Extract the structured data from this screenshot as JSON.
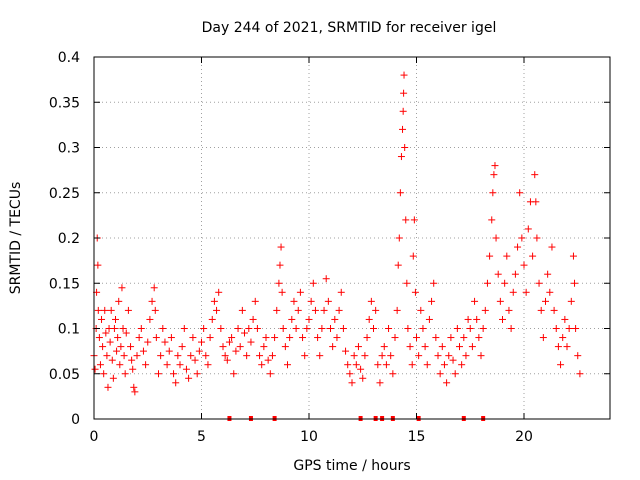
{
  "chart_data": {
    "type": "scatter",
    "title": "Day 244 of 2021, SRMTID for receiver igel",
    "xlabel": "GPS time / hours",
    "ylabel": "SRMTID / TECUs",
    "xlim": [
      0,
      24
    ],
    "ylim": [
      0,
      0.4
    ],
    "xticks": [
      0,
      5,
      10,
      15,
      20
    ],
    "yticks": [
      0,
      0.05,
      0.1,
      0.15,
      0.2,
      0.25,
      0.3,
      0.35,
      0.4
    ],
    "xtick_labels": [
      "0",
      "5",
      "10",
      "15",
      "20"
    ],
    "ytick_labels": [
      "0",
      "0.05",
      "0.1",
      "0.15",
      "0.2",
      "0.25",
      "0.3",
      "0.35",
      "0.4"
    ],
    "grid": true,
    "marker": "+",
    "color": "#ff0000",
    "series": [
      {
        "name": "SRMTID",
        "points": [
          [
            0.0,
            0.07
          ],
          [
            0.05,
            0.055
          ],
          [
            0.1,
            0.1
          ],
          [
            0.12,
            0.14
          ],
          [
            0.15,
            0.2
          ],
          [
            0.18,
            0.17
          ],
          [
            0.2,
            0.12
          ],
          [
            0.25,
            0.09
          ],
          [
            0.3,
            0.06
          ],
          [
            0.35,
            0.11
          ],
          [
            0.4,
            0.08
          ],
          [
            0.45,
            0.05
          ],
          [
            0.5,
            0.12
          ],
          [
            0.55,
            0.095
          ],
          [
            0.6,
            0.07
          ],
          [
            0.65,
            0.035
          ],
          [
            0.7,
            0.1
          ],
          [
            0.75,
            0.085
          ],
          [
            0.8,
            0.12
          ],
          [
            0.85,
            0.065
          ],
          [
            0.9,
            0.045
          ],
          [
            0.95,
            0.1
          ],
          [
            1.0,
            0.11
          ],
          [
            1.05,
            0.075
          ],
          [
            1.1,
            0.09
          ],
          [
            1.15,
            0.13
          ],
          [
            1.2,
            0.06
          ],
          [
            1.25,
            0.08
          ],
          [
            1.3,
            0.145
          ],
          [
            1.35,
            0.1
          ],
          [
            1.4,
            0.07
          ],
          [
            1.45,
            0.05
          ],
          [
            1.5,
            0.095
          ],
          [
            1.6,
            0.12
          ],
          [
            1.7,
            0.08
          ],
          [
            1.75,
            0.065
          ],
          [
            1.8,
            0.055
          ],
          [
            1.85,
            0.035
          ],
          [
            1.9,
            0.03
          ],
          [
            2.0,
            0.07
          ],
          [
            2.1,
            0.09
          ],
          [
            2.2,
            0.1
          ],
          [
            2.3,
            0.075
          ],
          [
            2.4,
            0.06
          ],
          [
            2.5,
            0.085
          ],
          [
            2.6,
            0.11
          ],
          [
            2.7,
            0.13
          ],
          [
            2.8,
            0.145
          ],
          [
            2.85,
            0.12
          ],
          [
            2.9,
            0.09
          ],
          [
            3.0,
            0.05
          ],
          [
            3.1,
            0.07
          ],
          [
            3.2,
            0.1
          ],
          [
            3.3,
            0.085
          ],
          [
            3.4,
            0.06
          ],
          [
            3.5,
            0.075
          ],
          [
            3.6,
            0.09
          ],
          [
            3.7,
            0.05
          ],
          [
            3.8,
            0.04
          ],
          [
            3.9,
            0.07
          ],
          [
            4.0,
            0.06
          ],
          [
            4.1,
            0.08
          ],
          [
            4.2,
            0.1
          ],
          [
            4.3,
            0.055
          ],
          [
            4.4,
            0.045
          ],
          [
            4.5,
            0.07
          ],
          [
            4.6,
            0.09
          ],
          [
            4.7,
            0.065
          ],
          [
            4.8,
            0.05
          ],
          [
            4.9,
            0.075
          ],
          [
            5.0,
            0.085
          ],
          [
            5.1,
            0.1
          ],
          [
            5.2,
            0.07
          ],
          [
            5.3,
            0.06
          ],
          [
            5.4,
            0.09
          ],
          [
            5.5,
            0.11
          ],
          [
            5.6,
            0.13
          ],
          [
            5.7,
            0.12
          ],
          [
            5.8,
            0.14
          ],
          [
            5.9,
            0.1
          ],
          [
            6.0,
            0.08
          ],
          [
            6.1,
            0.07
          ],
          [
            6.2,
            0.065
          ],
          [
            6.3,
            0.085
          ],
          [
            6.4,
            0.09
          ],
          [
            6.5,
            0.05
          ],
          [
            6.6,
            0.075
          ],
          [
            6.7,
            0.1
          ],
          [
            6.8,
            0.08
          ],
          [
            6.9,
            0.12
          ],
          [
            7.0,
            0.095
          ],
          [
            7.1,
            0.07
          ],
          [
            7.2,
            0.1
          ],
          [
            7.3,
            0.085
          ],
          [
            7.4,
            0.11
          ],
          [
            7.5,
            0.13
          ],
          [
            7.6,
            0.1
          ],
          [
            7.7,
            0.07
          ],
          [
            7.8,
            0.06
          ],
          [
            7.9,
            0.08
          ],
          [
            8.0,
            0.09
          ],
          [
            8.1,
            0.065
          ],
          [
            8.2,
            0.05
          ],
          [
            8.3,
            0.07
          ],
          [
            8.4,
            0.09
          ],
          [
            8.5,
            0.12
          ],
          [
            8.6,
            0.15
          ],
          [
            8.65,
            0.17
          ],
          [
            8.7,
            0.19
          ],
          [
            8.75,
            0.14
          ],
          [
            8.8,
            0.1
          ],
          [
            8.9,
            0.08
          ],
          [
            9.0,
            0.06
          ],
          [
            9.1,
            0.09
          ],
          [
            9.2,
            0.11
          ],
          [
            9.3,
            0.13
          ],
          [
            9.4,
            0.1
          ],
          [
            9.5,
            0.12
          ],
          [
            9.6,
            0.14
          ],
          [
            9.7,
            0.09
          ],
          [
            9.8,
            0.07
          ],
          [
            9.9,
            0.1
          ],
          [
            10.0,
            0.11
          ],
          [
            10.1,
            0.13
          ],
          [
            10.2,
            0.15
          ],
          [
            10.3,
            0.12
          ],
          [
            10.4,
            0.09
          ],
          [
            10.5,
            0.07
          ],
          [
            10.6,
            0.1
          ],
          [
            10.7,
            0.12
          ],
          [
            10.8,
            0.155
          ],
          [
            10.9,
            0.13
          ],
          [
            11.0,
            0.1
          ],
          [
            11.1,
            0.08
          ],
          [
            11.2,
            0.11
          ],
          [
            11.3,
            0.09
          ],
          [
            11.4,
            0.12
          ],
          [
            11.5,
            0.14
          ],
          [
            11.6,
            0.1
          ],
          [
            11.7,
            0.075
          ],
          [
            11.8,
            0.06
          ],
          [
            11.9,
            0.05
          ],
          [
            12.0,
            0.04
          ],
          [
            12.1,
            0.07
          ],
          [
            12.2,
            0.06
          ],
          [
            12.3,
            0.08
          ],
          [
            12.4,
            0.055
          ],
          [
            12.5,
            0.045
          ],
          [
            12.6,
            0.07
          ],
          [
            12.7,
            0.09
          ],
          [
            12.8,
            0.11
          ],
          [
            12.9,
            0.13
          ],
          [
            13.0,
            0.1
          ],
          [
            13.1,
            0.12
          ],
          [
            13.2,
            0.06
          ],
          [
            13.3,
            0.04
          ],
          [
            13.4,
            0.07
          ],
          [
            13.5,
            0.08
          ],
          [
            13.6,
            0.06
          ],
          [
            13.7,
            0.1
          ],
          [
            13.8,
            0.07
          ],
          [
            13.9,
            0.05
          ],
          [
            14.0,
            0.09
          ],
          [
            14.1,
            0.12
          ],
          [
            14.15,
            0.17
          ],
          [
            14.2,
            0.2
          ],
          [
            14.25,
            0.25
          ],
          [
            14.3,
            0.29
          ],
          [
            14.35,
            0.32
          ],
          [
            14.38,
            0.34
          ],
          [
            14.4,
            0.36
          ],
          [
            14.42,
            0.38
          ],
          [
            14.45,
            0.3
          ],
          [
            14.5,
            0.22
          ],
          [
            14.55,
            0.15
          ],
          [
            14.6,
            0.1
          ],
          [
            14.7,
            0.08
          ],
          [
            14.8,
            0.06
          ],
          [
            14.85,
            0.18
          ],
          [
            14.9,
            0.22
          ],
          [
            14.95,
            0.14
          ],
          [
            15.0,
            0.09
          ],
          [
            15.1,
            0.07
          ],
          [
            15.2,
            0.12
          ],
          [
            15.3,
            0.1
          ],
          [
            15.4,
            0.08
          ],
          [
            15.5,
            0.06
          ],
          [
            15.6,
            0.11
          ],
          [
            15.7,
            0.13
          ],
          [
            15.8,
            0.15
          ],
          [
            15.9,
            0.09
          ],
          [
            16.0,
            0.07
          ],
          [
            16.1,
            0.05
          ],
          [
            16.2,
            0.08
          ],
          [
            16.3,
            0.06
          ],
          [
            16.4,
            0.04
          ],
          [
            16.5,
            0.07
          ],
          [
            16.6,
            0.09
          ],
          [
            16.7,
            0.065
          ],
          [
            16.8,
            0.05
          ],
          [
            16.9,
            0.1
          ],
          [
            17.0,
            0.08
          ],
          [
            17.1,
            0.06
          ],
          [
            17.2,
            0.09
          ],
          [
            17.3,
            0.07
          ],
          [
            17.4,
            0.11
          ],
          [
            17.5,
            0.1
          ],
          [
            17.6,
            0.08
          ],
          [
            17.7,
            0.13
          ],
          [
            17.8,
            0.11
          ],
          [
            17.9,
            0.09
          ],
          [
            18.0,
            0.07
          ],
          [
            18.1,
            0.1
          ],
          [
            18.2,
            0.12
          ],
          [
            18.3,
            0.15
          ],
          [
            18.4,
            0.18
          ],
          [
            18.5,
            0.22
          ],
          [
            18.55,
            0.25
          ],
          [
            18.6,
            0.27
          ],
          [
            18.65,
            0.28
          ],
          [
            18.7,
            0.2
          ],
          [
            18.8,
            0.16
          ],
          [
            18.9,
            0.13
          ],
          [
            19.0,
            0.11
          ],
          [
            19.1,
            0.15
          ],
          [
            19.2,
            0.18
          ],
          [
            19.3,
            0.12
          ],
          [
            19.4,
            0.1
          ],
          [
            19.5,
            0.14
          ],
          [
            19.6,
            0.16
          ],
          [
            19.7,
            0.19
          ],
          [
            19.8,
            0.25
          ],
          [
            19.9,
            0.2
          ],
          [
            20.0,
            0.17
          ],
          [
            20.1,
            0.14
          ],
          [
            20.2,
            0.21
          ],
          [
            20.3,
            0.24
          ],
          [
            20.4,
            0.18
          ],
          [
            20.5,
            0.27
          ],
          [
            20.55,
            0.24
          ],
          [
            20.6,
            0.2
          ],
          [
            20.7,
            0.15
          ],
          [
            20.8,
            0.12
          ],
          [
            20.9,
            0.09
          ],
          [
            21.0,
            0.13
          ],
          [
            21.1,
            0.16
          ],
          [
            21.2,
            0.14
          ],
          [
            21.3,
            0.19
          ],
          [
            21.4,
            0.12
          ],
          [
            21.5,
            0.1
          ],
          [
            21.6,
            0.08
          ],
          [
            21.7,
            0.06
          ],
          [
            21.8,
            0.09
          ],
          [
            21.9,
            0.11
          ],
          [
            22.0,
            0.08
          ],
          [
            22.1,
            0.1
          ],
          [
            22.2,
            0.13
          ],
          [
            22.3,
            0.18
          ],
          [
            22.35,
            0.15
          ],
          [
            22.4,
            0.1
          ],
          [
            22.5,
            0.07
          ],
          [
            22.6,
            0.05
          ]
        ]
      }
    ],
    "gap_markers_x": [
      6.3,
      7.3,
      8.4,
      12.4,
      13.1,
      13.4,
      13.9,
      15.1,
      17.2,
      18.1
    ]
  }
}
